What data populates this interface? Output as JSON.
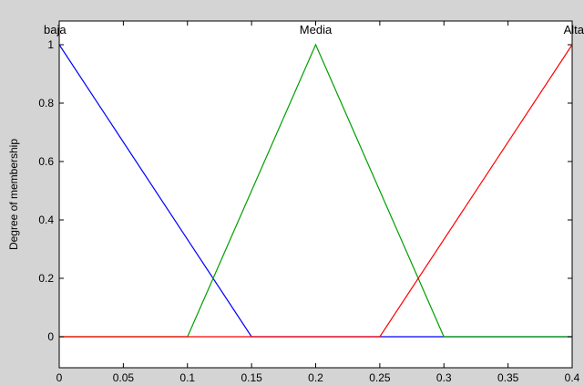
{
  "chart_data": {
    "type": "line",
    "title": "",
    "xlabel": "",
    "ylabel": "Degree of membership",
    "xlim": [
      0,
      0.4
    ],
    "ylim": [
      -0.1,
      1.05
    ],
    "x_ticks": [
      0,
      0.05,
      0.1,
      0.15,
      0.2,
      0.25,
      0.3,
      0.35,
      0.4
    ],
    "x_tick_labels": [
      "0",
      "0.05",
      "0.1",
      "0.15",
      "0.2",
      "0.25",
      "0.3",
      "0.35",
      "0.4"
    ],
    "y_ticks": [
      0,
      0.2,
      0.4,
      0.6,
      0.8,
      1
    ],
    "y_tick_labels": [
      "0",
      "0.2",
      "0.4",
      "0.6",
      "0.8",
      "1"
    ],
    "grid": false,
    "series": [
      {
        "name": "baja",
        "color": "#0000ff",
        "x": [
          0,
          0.15,
          0.4
        ],
        "y": [
          1,
          0,
          0
        ]
      },
      {
        "name": "Media",
        "color": "#00a000",
        "x": [
          0,
          0.1,
          0.2,
          0.3,
          0.4
        ],
        "y": [
          0,
          0,
          1,
          0,
          0
        ]
      },
      {
        "name": "Alta",
        "color": "#ff0000",
        "x": [
          0,
          0.25,
          0.4
        ],
        "y": [
          0,
          0,
          1
        ]
      }
    ]
  }
}
